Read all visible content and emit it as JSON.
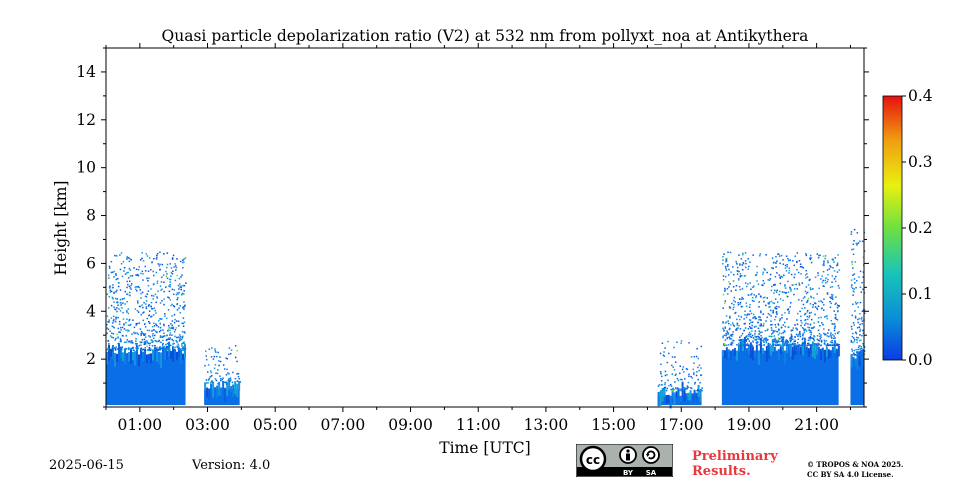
{
  "chart_data": {
    "type": "heatmap",
    "title": "Quasi particle depolarization ratio (V2) at 532 nm from pollyxt_noa at Antikythera",
    "xlabel": "Time [UTC]",
    "ylabel": "Height [km]",
    "x_unit": "hours UTC",
    "xlim": [
      0.0,
      22.4
    ],
    "ylim": [
      0.0,
      15.0
    ],
    "x_ticks": [
      1,
      3,
      5,
      7,
      9,
      11,
      13,
      15,
      17,
      19,
      21
    ],
    "x_tick_labels": [
      "01:00",
      "03:00",
      "05:00",
      "07:00",
      "09:00",
      "11:00",
      "13:00",
      "15:00",
      "17:00",
      "19:00",
      "21:00"
    ],
    "y_ticks": [
      2,
      4,
      6,
      8,
      10,
      12,
      14
    ],
    "y_tick_labels": [
      "2",
      "4",
      "6",
      "8",
      "10",
      "12",
      "14"
    ],
    "colorbar": {
      "min": 0.0,
      "max": 0.4,
      "ticks": [
        0.0,
        0.1,
        0.2,
        0.3,
        0.4
      ],
      "tick_labels": [
        "0.0",
        "0.1",
        "0.2",
        "0.3",
        "0.4"
      ],
      "colors": [
        "#0a3ce6",
        "#0a8fd6",
        "#19c4b8",
        "#6fe040",
        "#e8f010",
        "#f0a010",
        "#e81010"
      ]
    },
    "dominant_value": 0.03,
    "dominant_color": "#0a6ee6",
    "data_segments": [
      {
        "start": 0.0,
        "end": 2.35,
        "dense_top_km": 2.4,
        "sparse_top_km": 6.5,
        "point_density": 1.0
      },
      {
        "start": 2.9,
        "end": 3.95,
        "dense_top_km": 1.0,
        "sparse_top_km": 2.6,
        "point_density": 0.7
      },
      {
        "start": 16.3,
        "end": 17.6,
        "dense_top_km": 0.7,
        "sparse_top_km": 2.8,
        "point_density": 0.6
      },
      {
        "start": 18.2,
        "end": 21.65,
        "dense_top_km": 2.6,
        "sparse_top_km": 6.5,
        "point_density": 1.0
      },
      {
        "start": 22.0,
        "end": 22.4,
        "dense_top_km": 2.2,
        "sparse_top_km": 7.5,
        "point_density": 0.9
      }
    ]
  },
  "footer": {
    "date": "2025-06-15",
    "version": "Version: 4.0",
    "preliminary_line1": "Preliminary",
    "preliminary_line2": "Results.",
    "copyright_line1": "© TROPOS & NOA 2025.",
    "copyright_line2": "CC BY SA 4.0 License.",
    "cc_badge": {
      "cc": "cc",
      "by": "BY",
      "sa": "SA"
    }
  }
}
